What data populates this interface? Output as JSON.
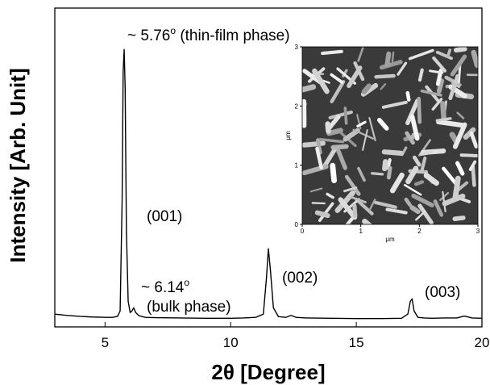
{
  "chart_data": {
    "type": "line",
    "xlabel": "2θ [Degree]",
    "ylabel": "Intensity [Arb. Unit]",
    "xlim": [
      3,
      20
    ],
    "xticks": [
      5,
      10,
      15,
      20
    ],
    "ylim": [
      0,
      100
    ],
    "series": [
      {
        "color": "#000000",
        "x": [
          3,
          3.5,
          4,
          4.5,
          5,
          5.3,
          5.5,
          5.6,
          5.68,
          5.72,
          5.76,
          5.8,
          5.85,
          5.92,
          6.0,
          6.07,
          6.14,
          6.22,
          6.35,
          6.6,
          7,
          8,
          9,
          10,
          10.5,
          11,
          11.3,
          11.42,
          11.5,
          11.58,
          11.7,
          11.9,
          12.2,
          12.4,
          12.6,
          13,
          14,
          15,
          16,
          16.8,
          17.05,
          17.15,
          17.22,
          17.3,
          17.45,
          17.7,
          18,
          18.5,
          19,
          19.3,
          19.6,
          20
        ],
        "values": [
          4,
          3.6,
          3.3,
          3.1,
          3.0,
          3.0,
          3.3,
          5,
          40,
          80,
          87,
          75,
          30,
          8,
          4.5,
          5,
          6,
          4.5,
          3.5,
          3.0,
          2.9,
          2.8,
          2.7,
          2.7,
          2.8,
          3.0,
          4,
          15,
          24.5,
          18,
          6,
          3.2,
          3.0,
          3.6,
          3.0,
          2.8,
          2.7,
          2.6,
          2.6,
          2.7,
          4,
          8,
          8.8,
          5,
          3.0,
          2.8,
          2.7,
          2.8,
          2.8,
          3.4,
          2.8,
          2.7
        ]
      }
    ],
    "annotations": [
      {
        "text": "~ 5.76",
        "sup": "o",
        "text2": " (thin-film phase)"
      },
      {
        "text": "(001)"
      },
      {
        "text": "~ 6.14",
        "sup": "o",
        "text2": "(bulk phase)"
      },
      {
        "text": "(002)"
      },
      {
        "text": "(003)"
      }
    ],
    "inset": {
      "xlim": [
        0,
        3
      ],
      "ylim": [
        0,
        3
      ],
      "xticks": [
        0,
        1,
        2,
        3
      ],
      "yticks": [
        0,
        1,
        2,
        3
      ],
      "xlabel": "μm",
      "ylabel": "μm"
    }
  }
}
